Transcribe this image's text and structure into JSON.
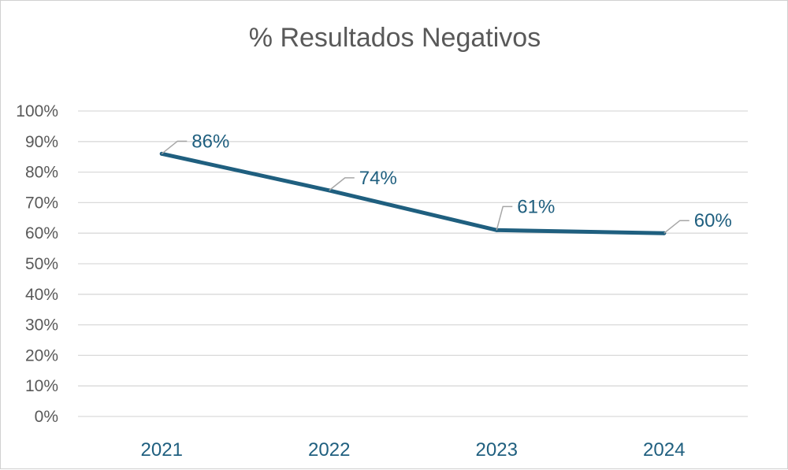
{
  "chart_data": {
    "type": "line",
    "title": "%  Resultados Negativos",
    "xlabel": "",
    "ylabel": "",
    "categories": [
      "2021",
      "2022",
      "2023",
      "2024"
    ],
    "values": [
      86,
      74,
      61,
      60
    ],
    "data_labels": [
      "86%",
      "74%",
      "61%",
      "60%"
    ],
    "ylim": [
      0,
      100
    ],
    "yticks": [
      0,
      10,
      20,
      30,
      40,
      50,
      60,
      70,
      80,
      90,
      100
    ],
    "ytick_labels": [
      "0%",
      "10%",
      "20%",
      "30%",
      "40%",
      "50%",
      "60%",
      "70%",
      "80%",
      "90%",
      "100%"
    ],
    "grid": true,
    "legend": "none",
    "colors": {
      "line": "#1f5f7f",
      "label": "#1f5f7f",
      "axis_text": "#595959",
      "grid": "#d9d9d9",
      "leader": "#a6a6a6"
    }
  }
}
